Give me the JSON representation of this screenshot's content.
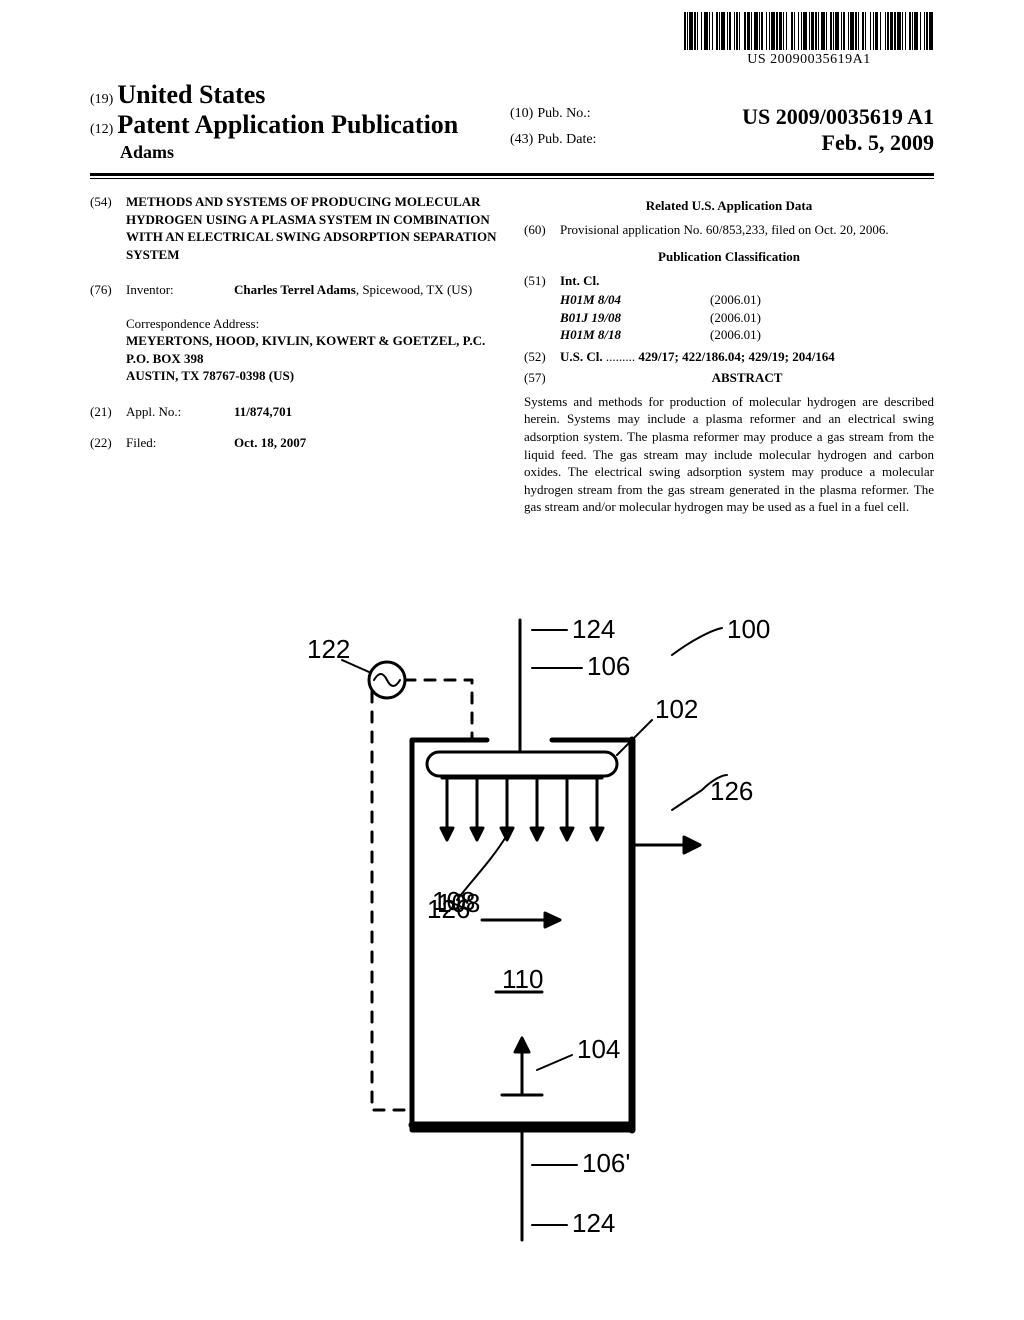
{
  "barcode_text": "US 20090035619A1",
  "header": {
    "country_code": "(19)",
    "country": "United States",
    "pub_type_code": "(12)",
    "pub_type": "Patent Application Publication",
    "author": "Adams",
    "pubno_code": "(10)",
    "pubno_label": "Pub. No.:",
    "pubno": "US 2009/0035619 A1",
    "pubdate_code": "(43)",
    "pubdate_label": "Pub. Date:",
    "pubdate": "Feb. 5, 2009"
  },
  "left": {
    "title_code": "(54)",
    "title": "METHODS AND SYSTEMS OF PRODUCING MOLECULAR HYDROGEN USING A PLASMA SYSTEM IN COMBINATION WITH AN ELECTRICAL SWING ADSORPTION SEPARATION SYSTEM",
    "inventor_code": "(76)",
    "inventor_label": "Inventor:",
    "inventor": "Charles Terrel Adams",
    "inventor_loc": ", Spicewood, TX (US)",
    "corr_label": "Correspondence Address:",
    "corr1": "MEYERTONS, HOOD, KIVLIN, KOWERT & GOETZEL, P.C.",
    "corr2": "P.O. BOX 398",
    "corr3": "AUSTIN, TX 78767-0398 (US)",
    "applno_code": "(21)",
    "applno_label": "Appl. No.:",
    "applno": "11/874,701",
    "filed_code": "(22)",
    "filed_label": "Filed:",
    "filed": "Oct. 18, 2007"
  },
  "right": {
    "related_title": "Related U.S. Application Data",
    "prov_code": "(60)",
    "prov_text": "Provisional application No. 60/853,233, filed on Oct. 20, 2006.",
    "pubclass_title": "Publication Classification",
    "intcl_code": "(51)",
    "intcl_label": "Int. Cl.",
    "intcl": [
      {
        "code": "H01M 8/04",
        "year": "(2006.01)"
      },
      {
        "code": "B01J 19/08",
        "year": "(2006.01)"
      },
      {
        "code": "H01M 8/18",
        "year": "(2006.01)"
      }
    ],
    "uscl_code": "(52)",
    "uscl_label": "U.S. Cl.",
    "uscl_dots": " .........",
    "uscl": " 429/17; 422/186.04; 429/19; 204/164",
    "abstract_code": "(57)",
    "abstract_label": "ABSTRACT",
    "abstract_text": "Systems and methods for production of molecular hydrogen are described herein. Systems may include a plasma reformer and an electrical swing adsorption system. The plasma reformer may produce a gas stream from the liquid feed. The gas stream may include molecular hydrogen and carbon oxides. The electrical swing adsorption system may produce a molecular hydrogen stream from the gas stream generated in the plasma reformer. The gas stream and/or molecular hydrogen may be used as a fuel in a fuel cell."
  },
  "figure": {
    "labels": {
      "100": "100",
      "102": "102",
      "104": "104",
      "106": "106",
      "106p": "106'",
      "108": "108",
      "110": "110",
      "122": "122",
      "124_top": "124",
      "124_bot": "124",
      "126_in": "126",
      "126_out": "126"
    },
    "stroke": "#000000",
    "stroke_width": 3,
    "font_size": 26
  }
}
